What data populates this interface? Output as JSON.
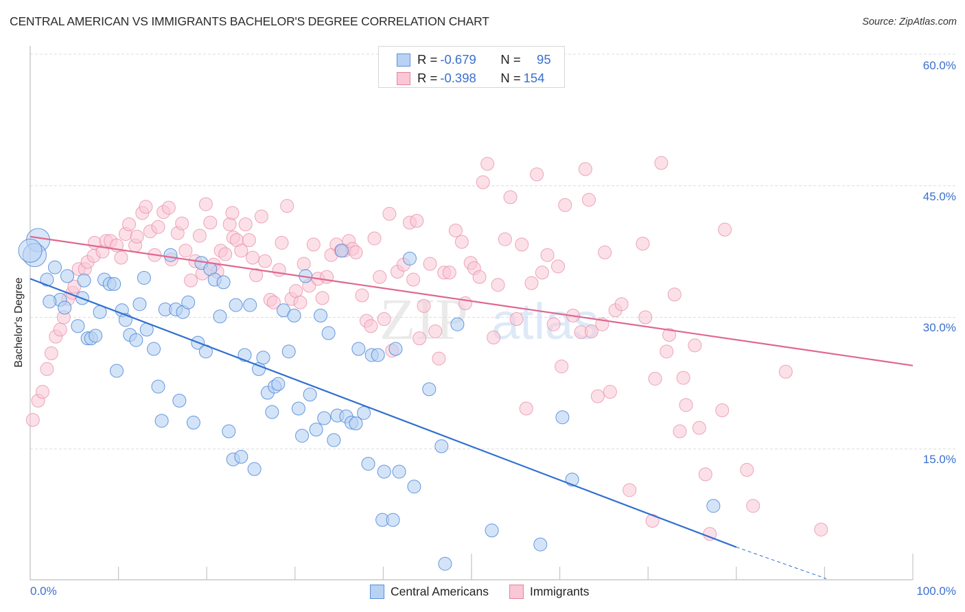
{
  "chart_data": {
    "type": "scatter",
    "title": "CENTRAL AMERICAN VS IMMIGRANTS BACHELOR'S DEGREE CORRELATION CHART",
    "source": "Source: ZipAtlas.com",
    "xlabel": "",
    "ylabel": "Bachelor's Degree",
    "xlim": [
      0,
      100
    ],
    "ylim": [
      0,
      60
    ],
    "x_tick_labels": {
      "min": "0.0%",
      "max": "100.0%"
    },
    "x_minor_ticks": [
      10,
      20,
      30,
      40,
      50,
      60,
      70,
      80,
      90
    ],
    "y_ticks": [
      {
        "value": 15,
        "label": "15.0%"
      },
      {
        "value": 30,
        "label": "30.0%"
      },
      {
        "value": 45,
        "label": "45.0%"
      },
      {
        "value": 60,
        "label": "60.0%"
      }
    ],
    "grid": "horizontal-dashed",
    "watermark": {
      "zip": "ZIP",
      "atlas": "atlas"
    },
    "legend_position": "top-center",
    "legend": [
      {
        "name": "Central Americans",
        "r_label": "R = ",
        "r": "-0.679",
        "n_label": "N = ",
        "n": "95",
        "color": "#b8d2f4",
        "stroke": "#5a8fd8"
      },
      {
        "name": "Immigrants",
        "r_label": "R = ",
        "r": "-0.398",
        "n_label": "N = ",
        "n": "154",
        "color": "#f9c7d5",
        "stroke": "#e8829f"
      }
    ],
    "series": [
      {
        "name": "Central Americans",
        "color": "#b8d2f4",
        "stroke": "#4c86d6",
        "trend": {
          "color": "#2f6fd1",
          "x0": 0,
          "y0": 34.4,
          "x1": 80,
          "y1": 3.8,
          "dash_to_x": 90.2,
          "dash_to_y": 0.2
        },
        "large_points": [
          [
            0.9,
            38.8
          ],
          [
            0.5,
            37.1
          ],
          [
            0.0,
            37.6
          ]
        ],
        "points": [
          [
            1.9,
            34.3
          ],
          [
            2.8,
            35.7
          ],
          [
            4.2,
            34.7
          ],
          [
            3.4,
            32.0
          ],
          [
            3.9,
            31.1
          ],
          [
            5.9,
            32.2
          ],
          [
            5.4,
            29.0
          ],
          [
            6.5,
            27.6
          ],
          [
            6.9,
            27.6
          ],
          [
            7.4,
            27.9
          ],
          [
            7.9,
            30.6
          ],
          [
            8.4,
            34.3
          ],
          [
            9.0,
            33.8
          ],
          [
            9.5,
            33.8
          ],
          [
            9.8,
            23.9
          ],
          [
            10.4,
            30.8
          ],
          [
            10.8,
            29.7
          ],
          [
            11.3,
            28.0
          ],
          [
            12.0,
            27.4
          ],
          [
            12.4,
            31.5
          ],
          [
            12.9,
            34.5
          ],
          [
            13.2,
            28.6
          ],
          [
            14.0,
            26.4
          ],
          [
            14.5,
            22.1
          ],
          [
            14.9,
            18.2
          ],
          [
            15.3,
            30.9
          ],
          [
            15.9,
            37.1
          ],
          [
            16.5,
            30.9
          ],
          [
            16.9,
            20.5
          ],
          [
            17.3,
            30.6
          ],
          [
            17.9,
            31.7
          ],
          [
            18.5,
            18.0
          ],
          [
            19.0,
            27.1
          ],
          [
            19.4,
            36.2
          ],
          [
            19.9,
            26.1
          ],
          [
            20.4,
            35.5
          ],
          [
            20.9,
            34.3
          ],
          [
            21.5,
            30.1
          ],
          [
            21.9,
            34.0
          ],
          [
            22.5,
            17.0
          ],
          [
            23.0,
            13.8
          ],
          [
            23.3,
            31.4
          ],
          [
            23.9,
            14.1
          ],
          [
            24.3,
            25.7
          ],
          [
            24.9,
            31.4
          ],
          [
            25.4,
            12.7
          ],
          [
            25.9,
            24.1
          ],
          [
            26.4,
            25.4
          ],
          [
            26.9,
            21.4
          ],
          [
            27.4,
            19.2
          ],
          [
            27.7,
            22.1
          ],
          [
            28.1,
            22.4
          ],
          [
            28.7,
            30.8
          ],
          [
            29.3,
            26.1
          ],
          [
            29.9,
            30.2
          ],
          [
            30.4,
            19.6
          ],
          [
            30.8,
            16.5
          ],
          [
            31.2,
            34.7
          ],
          [
            31.7,
            21.2
          ],
          [
            32.4,
            17.2
          ],
          [
            32.9,
            30.2
          ],
          [
            33.3,
            18.5
          ],
          [
            33.8,
            28.2
          ],
          [
            34.4,
            16.0
          ],
          [
            34.8,
            18.8
          ],
          [
            35.3,
            37.6
          ],
          [
            35.8,
            18.7
          ],
          [
            36.4,
            18.0
          ],
          [
            36.9,
            17.9
          ],
          [
            37.2,
            26.4
          ],
          [
            37.8,
            19.1
          ],
          [
            38.3,
            13.3
          ],
          [
            38.7,
            25.7
          ],
          [
            39.4,
            25.7
          ],
          [
            40.1,
            12.4
          ],
          [
            39.9,
            6.9
          ],
          [
            41.1,
            6.9
          ],
          [
            41.4,
            26.4
          ],
          [
            41.8,
            12.4
          ],
          [
            43.0,
            36.7
          ],
          [
            43.5,
            10.7
          ],
          [
            45.2,
            21.8
          ],
          [
            46.6,
            15.3
          ],
          [
            47.0,
            1.9
          ],
          [
            48.4,
            29.2
          ],
          [
            52.3,
            5.7
          ],
          [
            57.8,
            4.1
          ],
          [
            60.3,
            18.6
          ],
          [
            61.4,
            11.5
          ],
          [
            77.4,
            8.5
          ],
          [
            2.2,
            31.8
          ],
          [
            6.1,
            34.2
          ]
        ]
      },
      {
        "name": "Immigrants",
        "color": "#f9c7d5",
        "stroke": "#e58aa5",
        "trend": {
          "color": "#e0668f",
          "x0": 0,
          "y0": 39.2,
          "x1": 100,
          "y1": 24.5
        },
        "points": [
          [
            0.3,
            18.3
          ],
          [
            0.9,
            20.5
          ],
          [
            1.4,
            21.5
          ],
          [
            1.9,
            24.1
          ],
          [
            2.4,
            25.9
          ],
          [
            2.9,
            27.8
          ],
          [
            3.4,
            28.6
          ],
          [
            3.8,
            30.0
          ],
          [
            4.3,
            32.1
          ],
          [
            4.8,
            32.8
          ],
          [
            5.0,
            33.5
          ],
          [
            5.5,
            35.5
          ],
          [
            6.2,
            35.5
          ],
          [
            6.5,
            36.3
          ],
          [
            7.2,
            37.0
          ],
          [
            7.3,
            38.5
          ],
          [
            8.2,
            37.5
          ],
          [
            8.6,
            38.7
          ],
          [
            9.1,
            38.7
          ],
          [
            9.8,
            38.2
          ],
          [
            10.3,
            36.8
          ],
          [
            10.8,
            39.5
          ],
          [
            11.2,
            40.6
          ],
          [
            11.9,
            38.2
          ],
          [
            12.1,
            39.2
          ],
          [
            12.7,
            41.9
          ],
          [
            13.1,
            42.6
          ],
          [
            13.6,
            39.8
          ],
          [
            14.1,
            37.1
          ],
          [
            14.5,
            40.3
          ],
          [
            15.1,
            42.0
          ],
          [
            15.7,
            42.5
          ],
          [
            16.0,
            36.6
          ],
          [
            16.7,
            39.6
          ],
          [
            17.2,
            40.7
          ],
          [
            17.6,
            37.6
          ],
          [
            18.2,
            34.2
          ],
          [
            18.7,
            36.4
          ],
          [
            19.2,
            39.3
          ],
          [
            19.5,
            35.0
          ],
          [
            19.9,
            42.9
          ],
          [
            20.4,
            40.8
          ],
          [
            20.8,
            36.0
          ],
          [
            21.2,
            35.2
          ],
          [
            21.6,
            37.6
          ],
          [
            22.1,
            37.2
          ],
          [
            22.6,
            40.6
          ],
          [
            23.0,
            39.1
          ],
          [
            23.4,
            38.8
          ],
          [
            23.9,
            37.6
          ],
          [
            24.4,
            40.6
          ],
          [
            24.8,
            38.8
          ],
          [
            25.2,
            36.8
          ],
          [
            25.6,
            34.8
          ],
          [
            26.2,
            41.5
          ],
          [
            26.6,
            36.4
          ],
          [
            27.2,
            32.0
          ],
          [
            27.6,
            31.7
          ],
          [
            28.2,
            35.4
          ],
          [
            28.5,
            38.5
          ],
          [
            29.1,
            42.7
          ],
          [
            29.6,
            32.1
          ],
          [
            30.1,
            33.0
          ],
          [
            30.6,
            31.7
          ],
          [
            31.0,
            36.1
          ],
          [
            31.6,
            33.6
          ],
          [
            32.1,
            38.3
          ],
          [
            32.6,
            34.4
          ],
          [
            33.1,
            32.2
          ],
          [
            33.6,
            34.6
          ],
          [
            34.1,
            37.1
          ],
          [
            34.7,
            38.3
          ],
          [
            35.2,
            37.6
          ],
          [
            35.6,
            37.6
          ],
          [
            36.1,
            38.7
          ],
          [
            36.5,
            37.8
          ],
          [
            36.9,
            37.4
          ],
          [
            37.6,
            32.5
          ],
          [
            38.1,
            29.6
          ],
          [
            38.6,
            29.0
          ],
          [
            39.0,
            39.0
          ],
          [
            39.6,
            34.6
          ],
          [
            40.1,
            29.8
          ],
          [
            40.7,
            41.8
          ],
          [
            41.0,
            26.2
          ],
          [
            41.6,
            35.2
          ],
          [
            42.3,
            36.0
          ],
          [
            43.0,
            40.8
          ],
          [
            43.4,
            34.3
          ],
          [
            44.1,
            27.6
          ],
          [
            44.6,
            31.3
          ],
          [
            45.3,
            36.1
          ],
          [
            45.9,
            28.4
          ],
          [
            46.3,
            25.3
          ],
          [
            46.9,
            35.1
          ],
          [
            47.5,
            35.1
          ],
          [
            48.2,
            39.9
          ],
          [
            48.9,
            38.6
          ],
          [
            49.3,
            31.6
          ],
          [
            49.9,
            36.2
          ],
          [
            50.3,
            35.6
          ],
          [
            50.9,
            34.6
          ],
          [
            51.3,
            45.4
          ],
          [
            51.8,
            47.5
          ],
          [
            52.5,
            27.7
          ],
          [
            53.0,
            33.7
          ],
          [
            53.8,
            38.9
          ],
          [
            54.4,
            43.7
          ],
          [
            55.1,
            29.8
          ],
          [
            55.7,
            38.3
          ],
          [
            56.2,
            19.6
          ],
          [
            56.8,
            33.9
          ],
          [
            57.4,
            46.3
          ],
          [
            58.0,
            35.1
          ],
          [
            58.6,
            37.1
          ],
          [
            59.3,
            29.2
          ],
          [
            59.8,
            35.8
          ],
          [
            60.2,
            24.4
          ],
          [
            60.6,
            42.8
          ],
          [
            61.5,
            30.2
          ],
          [
            62.4,
            28.3
          ],
          [
            62.9,
            46.9
          ],
          [
            63.3,
            43.4
          ],
          [
            63.6,
            28.4
          ],
          [
            64.3,
            21.0
          ],
          [
            64.8,
            29.2
          ],
          [
            65.1,
            37.4
          ],
          [
            65.7,
            21.5
          ],
          [
            66.3,
            30.8
          ],
          [
            67.0,
            31.5
          ],
          [
            67.9,
            10.3
          ],
          [
            69.4,
            38.4
          ],
          [
            69.7,
            30.0
          ],
          [
            70.5,
            6.8
          ],
          [
            70.8,
            23.0
          ],
          [
            71.5,
            47.6
          ],
          [
            72.1,
            26.1
          ],
          [
            72.4,
            28.0
          ],
          [
            73.0,
            32.6
          ],
          [
            73.6,
            17.0
          ],
          [
            74.0,
            23.1
          ],
          [
            74.3,
            20.0
          ],
          [
            75.3,
            26.8
          ],
          [
            75.8,
            17.4
          ],
          [
            76.5,
            12.1
          ],
          [
            77.0,
            5.3
          ],
          [
            78.4,
            19.4
          ],
          [
            78.7,
            40.0
          ],
          [
            81.2,
            12.6
          ],
          [
            81.9,
            8.5
          ],
          [
            85.6,
            23.8
          ],
          [
            89.6,
            5.8
          ],
          [
            22.9,
            41.9
          ],
          [
            43.8,
            41.0
          ]
        ]
      }
    ]
  }
}
